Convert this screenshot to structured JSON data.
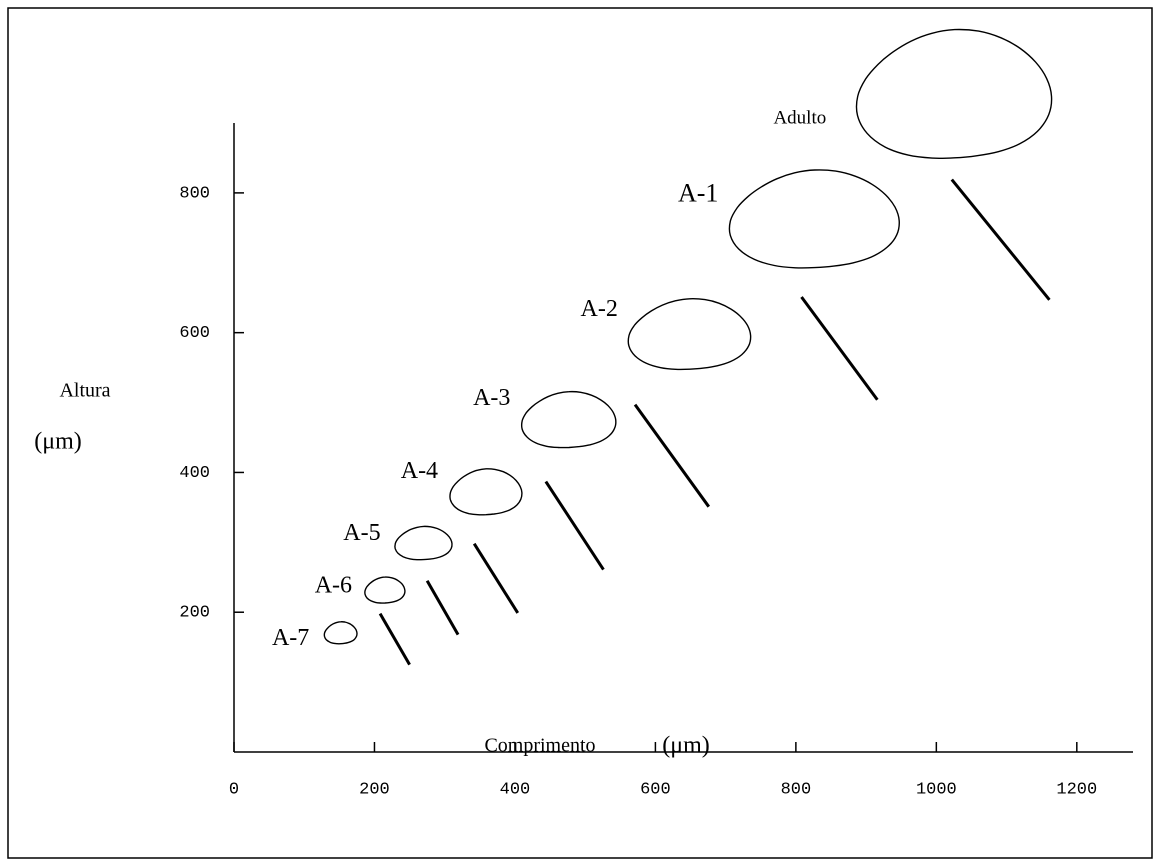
{
  "chart_data": {
    "type": "growth-stages",
    "xlabel": "Comprimento",
    "xunit": "(μm)",
    "ylabel": "Altura",
    "yunit": "(μm)",
    "xlim": [
      0,
      1280
    ],
    "ylim": [
      0,
      900
    ],
    "xticks": [
      0,
      200,
      400,
      600,
      800,
      1000,
      1200
    ],
    "yticks": [
      200,
      400,
      600,
      800
    ],
    "stages": [
      {
        "label": "A-7",
        "x": 152,
        "y": 170,
        "length": 44,
        "height": 33
      },
      {
        "label": "A-6",
        "x": 215,
        "y": 231,
        "length": 54,
        "height": 39
      },
      {
        "label": "A-5",
        "x": 270,
        "y": 298,
        "length": 77,
        "height": 50
      },
      {
        "label": "A-4",
        "x": 359,
        "y": 371,
        "length": 97,
        "height": 69
      },
      {
        "label": "A-3",
        "x": 477,
        "y": 474,
        "length": 127,
        "height": 84
      },
      {
        "label": "A-2",
        "x": 649,
        "y": 596,
        "length": 165,
        "height": 106
      },
      {
        "label": "A-1",
        "x": 827,
        "y": 760,
        "length": 229,
        "height": 147
      },
      {
        "label": "Adulto",
        "x": 1026,
        "y": 938,
        "length": 263,
        "height": 193
      }
    ],
    "segments": [
      [
        208,
        198,
        250,
        125
      ],
      [
        275,
        245,
        319,
        168
      ],
      [
        342,
        298,
        404,
        199
      ],
      [
        444,
        387,
        526,
        261
      ],
      [
        571,
        497,
        676,
        351
      ],
      [
        808,
        651,
        916,
        504
      ],
      [
        1022,
        819,
        1161,
        647
      ]
    ]
  }
}
